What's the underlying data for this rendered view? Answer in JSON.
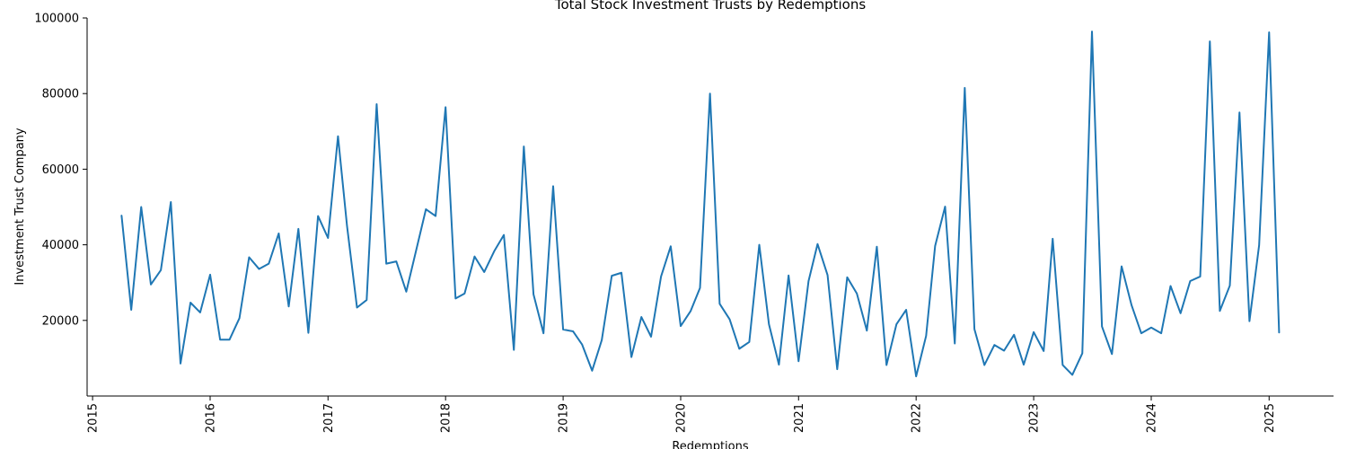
{
  "chart_data": {
    "type": "line",
    "title": "Total Stock Investment Trusts by Redemptions",
    "xlabel": "Redemptions",
    "ylabel": "Investment Trust Company",
    "xlim": [
      "2014-12-15",
      "2025-07-20"
    ],
    "ylim": [
      0,
      100000
    ],
    "x_ticks": [
      "2015",
      "2016",
      "2017",
      "2018",
      "2019",
      "2020",
      "2021",
      "2022",
      "2023",
      "2024",
      "2025"
    ],
    "y_ticks": [
      "20000",
      "40000",
      "60000",
      "80000",
      "100000"
    ],
    "grid": false,
    "color": "#1f77b4",
    "series": [
      {
        "x": [
          "2015-04",
          "2015-05",
          "2015-06",
          "2015-07",
          "2015-08",
          "2015-09",
          "2015-10",
          "2015-11",
          "2015-12",
          "2016-01",
          "2016-02",
          "2016-03",
          "2016-04",
          "2016-05",
          "2016-06",
          "2016-07",
          "2016-08",
          "2016-09",
          "2016-10",
          "2016-11",
          "2016-12",
          "2017-01",
          "2017-02",
          "2017-03",
          "2017-04",
          "2017-05",
          "2017-06",
          "2017-07",
          "2017-08",
          "2017-09",
          "2017-10",
          "2017-11",
          "2017-12",
          "2018-01",
          "2018-02",
          "2018-03",
          "2018-04",
          "2018-05",
          "2018-06",
          "2018-07",
          "2018-08",
          "2018-09",
          "2018-10",
          "2018-11",
          "2018-12",
          "2019-01",
          "2019-02",
          "2019-03",
          "2019-04",
          "2019-05",
          "2019-06",
          "2019-07",
          "2019-08",
          "2019-09",
          "2019-10",
          "2019-11",
          "2019-12",
          "2020-01",
          "2020-02",
          "2020-03",
          "2020-04",
          "2020-05",
          "2020-06",
          "2020-07",
          "2020-08",
          "2020-09",
          "2020-10",
          "2020-11",
          "2020-12",
          "2021-01",
          "2021-02",
          "2021-03",
          "2021-04",
          "2021-05",
          "2021-06",
          "2021-07",
          "2021-08",
          "2021-09",
          "2021-10",
          "2021-11",
          "2021-12",
          "2022-01",
          "2022-02",
          "2022-03",
          "2022-04",
          "2022-05",
          "2022-06",
          "2022-07",
          "2022-08",
          "2022-09",
          "2022-10",
          "2022-11",
          "2022-12",
          "2023-01",
          "2023-02",
          "2023-03",
          "2023-04",
          "2023-05",
          "2023-06",
          "2023-07",
          "2023-08",
          "2023-09",
          "2023-10",
          "2023-11",
          "2023-12",
          "2024-01",
          "2024-02",
          "2024-03",
          "2024-04",
          "2024-05",
          "2024-06",
          "2024-07",
          "2024-08",
          "2024-09",
          "2024-10",
          "2024-11",
          "2024-12",
          "2025-01",
          "2025-02"
        ],
        "y": [
          47700,
          22800,
          50000,
          29500,
          33300,
          51300,
          8600,
          24700,
          22100,
          32100,
          14900,
          14900,
          20600,
          36700,
          33600,
          35000,
          43000,
          23700,
          44200,
          16700,
          47600,
          41800,
          68700,
          45000,
          23400,
          25400,
          77200,
          35000,
          35600,
          27600,
          38300,
          49400,
          47600,
          76400,
          25800,
          27100,
          36900,
          32800,
          38300,
          42600,
          12200,
          66000,
          26900,
          16600,
          55500,
          17600,
          17100,
          13600,
          6700,
          14800,
          31800,
          32600,
          10300,
          20900,
          15700,
          31600,
          39600,
          18500,
          22500,
          28600,
          80000,
          24400,
          20300,
          12500,
          14300,
          40000,
          19000,
          8300,
          31900,
          9200,
          30400,
          40200,
          32000,
          7100,
          31400,
          27100,
          17300,
          39500,
          8200,
          19000,
          22800,
          5200,
          15900,
          39700,
          50100,
          13900,
          81500,
          17700,
          8200,
          13500,
          12000,
          16200,
          8300,
          16900,
          11900,
          41600,
          8200,
          5600,
          11300,
          96400,
          18400,
          11100,
          34300,
          24000,
          16600,
          18100,
          16600,
          29100,
          21900,
          30400,
          31600,
          93800,
          22500,
          29200,
          75000,
          19800,
          39900,
          96200,
          16800
        ]
      }
    ]
  }
}
